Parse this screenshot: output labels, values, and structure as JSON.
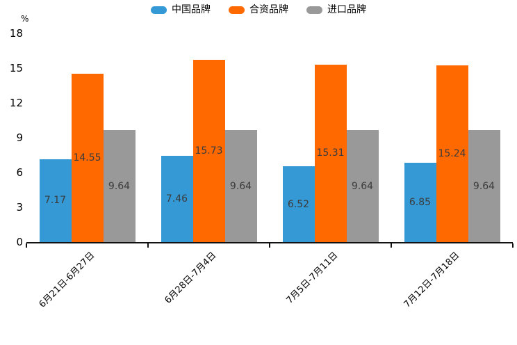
{
  "chart_data": {
    "type": "bar",
    "title": "",
    "unit_label": "%",
    "xlabel": "",
    "ylabel": "%",
    "ylim": [
      0,
      18
    ],
    "y_ticks": [
      0,
      3,
      6,
      9,
      12,
      15,
      18
    ],
    "grid": false,
    "legend_position": "top",
    "categories": [
      "6月21日-6月27日",
      "6月28日-7月4日",
      "7月5日-7月11日",
      "7月12日-7月18日"
    ],
    "series": [
      {
        "name": "中国品牌",
        "color": "#3599d5",
        "values": [
          7.17,
          7.46,
          6.52,
          6.85
        ]
      },
      {
        "name": "合资品牌",
        "color": "#ff6900",
        "values": [
          14.55,
          15.73,
          15.31,
          15.24
        ]
      },
      {
        "name": "进口品牌",
        "color": "#999999",
        "values": [
          9.64,
          9.64,
          9.64,
          9.64
        ]
      }
    ],
    "value_labels_shown": true,
    "colors": {
      "axis": "#111111",
      "tick_text": "#000000",
      "value_label_text": "#3b3b3b",
      "background": "#ffffff"
    }
  }
}
